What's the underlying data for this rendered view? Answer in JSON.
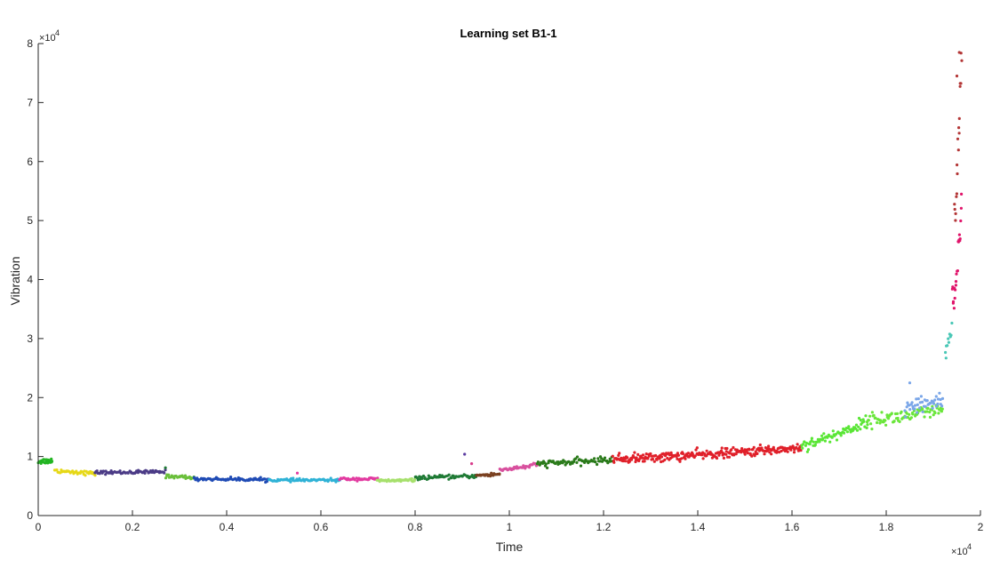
{
  "chart_data": {
    "type": "scatter",
    "title": "Learning set B1-1",
    "xlabel": "Time",
    "ylabel": "Vibration",
    "x_exponent_base": "×10",
    "x_exponent_power": "4",
    "y_exponent_base": "×10",
    "y_exponent_power": "4",
    "xlim": [
      0,
      20000
    ],
    "ylim": [
      0,
      80000
    ],
    "xticks": [
      0,
      2000,
      4000,
      6000,
      8000,
      10000,
      12000,
      14000,
      16000,
      18000,
      20000
    ],
    "xtick_labels": [
      "0",
      "0.2",
      "0.4",
      "0.6",
      "0.8",
      "1",
      "1.2",
      "1.4",
      "1.6",
      "1.8",
      "2"
    ],
    "yticks": [
      0,
      10000,
      20000,
      30000,
      40000,
      50000,
      60000,
      70000,
      80000
    ],
    "ytick_labels": [
      "0",
      "1",
      "2",
      "3",
      "4",
      "5",
      "6",
      "7",
      "8"
    ],
    "grid": false,
    "legend": false,
    "colors": {
      "axis": "#262626",
      "background": "#ffffff"
    },
    "segments": [
      {
        "color": "#22b522",
        "x": [
          0,
          300
        ],
        "y": [
          9200,
          9300
        ],
        "noise": 400,
        "n": 22
      },
      {
        "color": "#e6d817",
        "x": [
          350,
          1200
        ],
        "y": [
          7600,
          7100
        ],
        "noise": 300,
        "n": 40
      },
      {
        "color": "#4b3b86",
        "x": [
          1200,
          2700
        ],
        "y": [
          7300,
          7400
        ],
        "noise": 250,
        "n": 70
      },
      {
        "color": "#6abf3a",
        "x": [
          2700,
          3300
        ],
        "y": [
          6700,
          6400
        ],
        "noise": 250,
        "n": 30
      },
      {
        "color": "#1f4bb5",
        "x": [
          3300,
          4900
        ],
        "y": [
          6200,
          6100
        ],
        "noise": 220,
        "n": 75
      },
      {
        "color": "#2fb2d6",
        "x": [
          4900,
          6400
        ],
        "y": [
          6000,
          6000
        ],
        "noise": 200,
        "n": 70
      },
      {
        "color": "#e23aa0",
        "x": [
          6400,
          7200
        ],
        "y": [
          6200,
          6200
        ],
        "noise": 200,
        "n": 40
      },
      {
        "color": "#a6e06c",
        "x": [
          7200,
          8000
        ],
        "y": [
          5900,
          6000
        ],
        "noise": 200,
        "n": 40
      },
      {
        "color": "#1f7a35",
        "x": [
          8000,
          9300
        ],
        "y": [
          6400,
          6700
        ],
        "noise": 250,
        "n": 60
      },
      {
        "color": "#7a4020",
        "x": [
          9300,
          9800
        ],
        "y": [
          6800,
          7000
        ],
        "noise": 250,
        "n": 25
      },
      {
        "color": "#d8509e",
        "x": [
          9800,
          10600
        ],
        "y": [
          7800,
          8600
        ],
        "noise": 300,
        "n": 40
      },
      {
        "color": "#2a7a1a",
        "x": [
          10600,
          12200
        ],
        "y": [
          8800,
          9500
        ],
        "noise": 450,
        "n": 80
      },
      {
        "color": "#e0202a",
        "x": [
          12200,
          16200
        ],
        "y": [
          9600,
          11500
        ],
        "noise": 650,
        "n": 280
      },
      {
        "color": "#5ae636",
        "x": [
          16200,
          17600
        ],
        "y": [
          12000,
          16000
        ],
        "noise": 800,
        "n": 80
      },
      {
        "color": "#6ae63a",
        "x": [
          17600,
          19200
        ],
        "y": [
          16200,
          17800
        ],
        "noise": 1000,
        "n": 90
      },
      {
        "color": "#7aa6e8",
        "x": [
          18400,
          19200
        ],
        "y": [
          18000,
          19800
        ],
        "noise": 1200,
        "n": 45
      },
      {
        "color": "#49c7b6",
        "x": [
          19250,
          19400
        ],
        "y": [
          27500,
          32000
        ],
        "noise": 1200,
        "n": 10
      },
      {
        "color": "#e0146a",
        "x": [
          19400,
          19600
        ],
        "y": [
          36000,
          50000
        ],
        "noise": 3500,
        "n": 22
      },
      {
        "color": "#b33636",
        "x": [
          19450,
          19600
        ],
        "y": [
          52000,
          78500
        ],
        "noise": 3000,
        "n": 18
      }
    ],
    "outliers": [
      {
        "x": 9050,
        "y": 10400,
        "color": "#5a3aa0"
      },
      {
        "x": 9200,
        "y": 8800,
        "color": "#d83a8a"
      },
      {
        "x": 5500,
        "y": 7200,
        "color": "#e23aa0"
      },
      {
        "x": 2700,
        "y": 8100,
        "color": "#1f7a35"
      },
      {
        "x": 18500,
        "y": 22500,
        "color": "#7aa6e8"
      },
      {
        "x": 19500,
        "y": 74500,
        "color": "#b33636"
      },
      {
        "x": 19550,
        "y": 78500,
        "color": "#b33636"
      }
    ]
  }
}
